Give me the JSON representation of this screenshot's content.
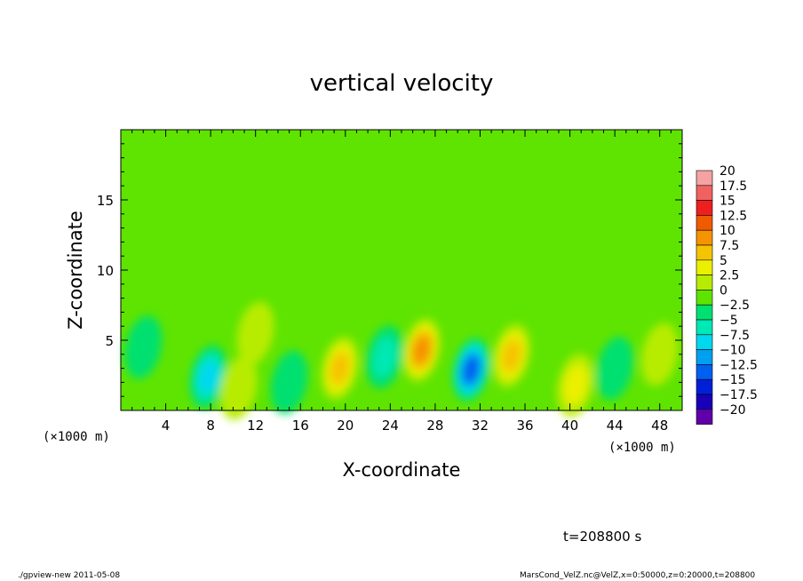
{
  "chart_data": {
    "type": "heatmap",
    "title": "vertical velocity",
    "xlabel": "X-coordinate",
    "ylabel": "Z-coordinate",
    "x_unit": "(×1000 m)",
    "y_unit": "(×1000 m)",
    "xlim": [
      0,
      50
    ],
    "ylim": [
      0,
      20
    ],
    "x_ticks": [
      "4",
      "8",
      "12",
      "16",
      "20",
      "24",
      "28",
      "32",
      "36",
      "40",
      "44",
      "48"
    ],
    "y_ticks": [
      "5",
      "10",
      "15"
    ],
    "x_tick_values": [
      4,
      8,
      12,
      16,
      20,
      24,
      28,
      32,
      36,
      40,
      44,
      48
    ],
    "y_tick_values": [
      5,
      10,
      15
    ],
    "colorbar": {
      "levels": [
        20,
        17.5,
        15,
        12.5,
        10,
        7.5,
        5,
        2.5,
        0,
        -2.5,
        -5,
        -7.5,
        -10,
        -12.5,
        -15,
        -17.5,
        -20
      ],
      "labels": [
        "20",
        "17.5",
        "15",
        "12.5",
        "10",
        "7.5",
        "5",
        "2.5",
        "0",
        "−2.5",
        "−5",
        "−7.5",
        "−10",
        "−12.5",
        "−15",
        "−17.5",
        "−20"
      ],
      "colors": [
        "#f4a2a2",
        "#f06262",
        "#f01f1f",
        "#f05a00",
        "#f59300",
        "#f5c400",
        "#eaf000",
        "#b7ec00",
        "#5ee400",
        "#00e070",
        "#00e8b4",
        "#00d8f0",
        "#00a0f0",
        "#0060f0",
        "#0020d8",
        "#1800b8",
        "#6000a8"
      ]
    },
    "features": [
      {
        "x": 7.8,
        "z": 2.4,
        "w": -8
      },
      {
        "x": 10.5,
        "z": 1.6,
        "w": 3
      },
      {
        "x": 12,
        "z": 5.5,
        "w": 3
      },
      {
        "x": 15,
        "z": 2.0,
        "w": -4
      },
      {
        "x": 19.5,
        "z": 3.0,
        "w": 8
      },
      {
        "x": 23.5,
        "z": 3.8,
        "w": -6
      },
      {
        "x": 26.8,
        "z": 4.3,
        "w": 12
      },
      {
        "x": 31.2,
        "z": 2.9,
        "w": -12.5
      },
      {
        "x": 34.8,
        "z": 3.9,
        "w": 8
      },
      {
        "x": 40.5,
        "z": 1.8,
        "w": 5
      },
      {
        "x": 2,
        "z": 4.5,
        "w": -3
      },
      {
        "x": 44,
        "z": 3.0,
        "w": -3
      },
      {
        "x": 48,
        "z": 4.0,
        "w": 2.5
      }
    ]
  },
  "footer": {
    "time": "t=208800 s",
    "program": "./gpview-new   2011-05-08",
    "source": "MarsCond_VelZ.nc@VelZ,x=0:50000,z=0:20000,t=208800"
  }
}
